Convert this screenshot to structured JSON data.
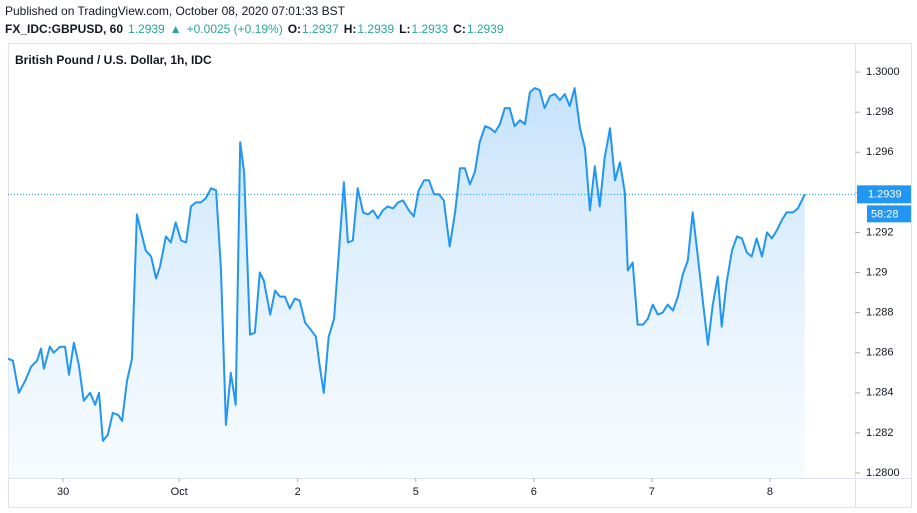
{
  "header": {
    "published": "Published on TradingView.com, October 08, 2020 07:01:33 BST",
    "symbol": "FX_IDC:GBPUSD, 60",
    "last": "1.2939",
    "arrow": "▲",
    "change": "+0.0025 (+0.19%)",
    "ohlc": [
      {
        "key": "O:",
        "value": "1.2937"
      },
      {
        "key": "H:",
        "value": "1.2939"
      },
      {
        "key": "L:",
        "value": "1.2933"
      },
      {
        "key": "C:",
        "value": "1.2939"
      }
    ]
  },
  "chart_data": {
    "type": "area",
    "title": "British Pound / U.S. Dollar, 1h, IDC",
    "price_label": "1.2939",
    "countdown": "58:28",
    "x": [
      0,
      1.0,
      2.2,
      3.5,
      4.7,
      5.9,
      6.7,
      7.3,
      8.5,
      9.3,
      10.6,
      11.6,
      12.4,
      13.4,
      14.4,
      15.4,
      16.7,
      17.7,
      18.5,
      19.3,
      20.3,
      21.3,
      22.4,
      23.2,
      24.2,
      25.2,
      26.2,
      27.0,
      28.0,
      29.1,
      30.1,
      30.9,
      32.1,
      33.1,
      34.1,
      35.2,
      36.2,
      37.2,
      38.2,
      39.2,
      40.2,
      41.3,
      42.3,
      43.3,
      44.3,
      45.3,
      46.3,
      47.2,
      48.0,
      49.2,
      50.2,
      51.2,
      52.0,
      53.3,
      54.3,
      55.3,
      56.3,
      57.3,
      58.3,
      59.3,
      60.4,
      61.4,
      62.6,
      63.4,
      64.2,
      65.2,
      66.3,
      67.3,
      68.3,
      69.1,
      70.1,
      71.1,
      72.2,
      73.2,
      74.2,
      75.2,
      76.2,
      77.2,
      78.3,
      79.3,
      80.3,
      81.5,
      82.5,
      83.5,
      84.6,
      85.6,
      86.6,
      87.6,
      88.6,
      89.8,
      90.9,
      91.9,
      92.9,
      93.9,
      94.9,
      95.9,
      97.0,
      98.0,
      99.0,
      100.0,
      101.0,
      102.0,
      103.0,
      104.1,
      105.1,
      106.1,
      107.1,
      108.1,
      109.1,
      110.2,
      111.2,
      112.2,
      113.2,
      114.2,
      115.2,
      116.3,
      117.3,
      118.3,
      119.3,
      120.3,
      121.3,
      122.4,
      123.4,
      124.4,
      125.4,
      126.0,
      127.0,
      128.0,
      129.1,
      130.1,
      131.1,
      132.1,
      133.1,
      134.1,
      135.2,
      136.2,
      137.2,
      138.2,
      139.2,
      140.2,
      141.3,
      142.3,
      143.3,
      144.3,
      145.1,
      146.1,
      147.2,
      148.2,
      149.2,
      150.2,
      151.2,
      152.2,
      153.3,
      154.3,
      155.3,
      156.3,
      157.3,
      158.3,
      159.6,
      160.6,
      162.0
    ],
    "series": [
      {
        "color": "#2196f3",
        "values": [
          1.2857,
          1.2856,
          1.284,
          1.2846,
          1.2853,
          1.2856,
          1.2862,
          1.2852,
          1.2863,
          1.286,
          1.2863,
          1.2863,
          1.2849,
          1.2865,
          1.2854,
          1.2836,
          1.284,
          1.2834,
          1.284,
          1.2816,
          1.2819,
          1.283,
          1.2829,
          1.2826,
          1.2846,
          1.2857,
          1.2929,
          1.2921,
          1.2911,
          1.2908,
          1.2897,
          1.2903,
          1.2918,
          1.2915,
          1.2925,
          1.2916,
          1.2915,
          1.2933,
          1.2935,
          1.2935,
          1.2937,
          1.2942,
          1.2941,
          1.2901,
          1.2824,
          1.285,
          1.2834,
          1.2965,
          1.295,
          1.2869,
          1.287,
          1.29,
          1.2896,
          1.2879,
          1.2891,
          1.2888,
          1.2888,
          1.2882,
          1.2887,
          1.2886,
          1.2875,
          1.2872,
          1.2868,
          1.2853,
          1.284,
          1.2868,
          1.2877,
          1.2911,
          1.2945,
          1.2915,
          1.2916,
          1.2942,
          1.293,
          1.2929,
          1.2931,
          1.2927,
          1.2931,
          1.2933,
          1.2932,
          1.2935,
          1.2936,
          1.2931,
          1.2928,
          1.2941,
          1.2946,
          1.2946,
          1.2939,
          1.2939,
          1.2936,
          1.2913,
          1.293,
          1.2952,
          1.2952,
          1.2944,
          1.295,
          1.2965,
          1.2973,
          1.2972,
          1.297,
          1.2974,
          1.2982,
          1.2982,
          1.2973,
          1.2976,
          1.2974,
          1.299,
          1.2992,
          1.2991,
          1.2982,
          1.2988,
          1.2989,
          1.2986,
          1.2989,
          1.2983,
          1.2992,
          1.2972,
          1.2962,
          1.2931,
          1.2953,
          1.2933,
          1.2957,
          1.2972,
          1.2946,
          1.2955,
          1.294,
          1.2901,
          1.2905,
          1.2874,
          1.2874,
          1.2877,
          1.2884,
          1.2879,
          1.288,
          1.2884,
          1.2881,
          1.2888,
          1.2899,
          1.2906,
          1.293,
          1.2909,
          1.2885,
          1.2864,
          1.2884,
          1.2898,
          1.2873,
          1.2895,
          1.2911,
          1.2918,
          1.2917,
          1.291,
          1.2908,
          1.2917,
          1.2908,
          1.292,
          1.2917,
          1.2921,
          1.2926,
          1.293,
          1.293,
          1.2932,
          1.2939
        ]
      }
    ],
    "xlim": [
      0,
      172.2
    ],
    "xticks": [
      {
        "value": 11.2,
        "label": "30"
      },
      {
        "value": 34.8,
        "label": "Oct"
      },
      {
        "value": 58.9,
        "label": "2"
      },
      {
        "value": 82.9,
        "label": "5"
      },
      {
        "value": 106.9,
        "label": "6"
      },
      {
        "value": 130.9,
        "label": "7"
      },
      {
        "value": 154.9,
        "label": "8"
      }
    ],
    "ylim": [
      1.27975,
      1.30145
    ],
    "yticks": [
      {
        "value": 1.28,
        "label": "1.2800"
      },
      1.282,
      1.284,
      1.286,
      1.288,
      1.29,
      1.292,
      1.294,
      1.296,
      1.298,
      {
        "value": 1.3,
        "label": "1.3000"
      }
    ]
  }
}
